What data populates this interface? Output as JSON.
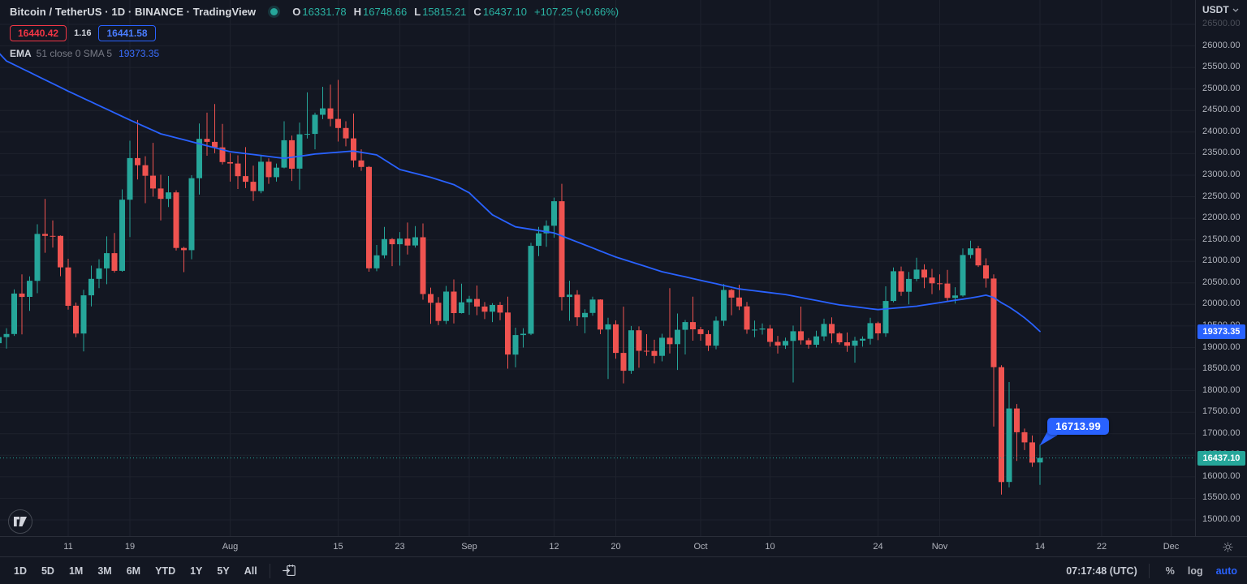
{
  "header": {
    "title": "Bitcoin / TetherUS · 1D · BINANCE · TradingView",
    "ohlc": {
      "o_label": "O",
      "o": "16331.78",
      "h_label": "H",
      "h": "16748.66",
      "l_label": "L",
      "l": "15815.21",
      "c_label": "C",
      "c": "16437.10",
      "change": "+107.25 (+0.66%)"
    },
    "bid": "16440.42",
    "spread": "1.16",
    "ask": "16441.58",
    "indicator": {
      "name": "EMA",
      "params": "51 close 0 SMA 5",
      "value": "19373.35"
    }
  },
  "price_axis": {
    "currency": "USDT",
    "indicator_tag": "19373.35",
    "last_tag": "16437.10"
  },
  "callout": {
    "text": "16713.99"
  },
  "toolbar": {
    "ranges": [
      "1D",
      "5D",
      "1M",
      "3M",
      "6M",
      "YTD",
      "1Y",
      "5Y",
      "All"
    ],
    "time": "07:17:48 (UTC)",
    "percent": "%",
    "log": "log",
    "auto": "auto"
  },
  "chart_data": {
    "type": "candlestick",
    "symbol": "Bitcoin / TetherUS",
    "exchange": "BINANCE",
    "interval": "1D",
    "price_axis": {
      "min": 15000,
      "max": 26500,
      "step": 500
    },
    "last_price": 16437.1,
    "indicator_last": 19373.35,
    "callout_price": 16713.99,
    "colors": {
      "up": "#26a69a",
      "down": "#ef5350",
      "ema": "#2962ff"
    },
    "x_ticks": [
      {
        "i": 8,
        "label": "11"
      },
      {
        "i": 16,
        "label": "19"
      },
      {
        "i": 29,
        "label": "Aug"
      },
      {
        "i": 43,
        "label": "15"
      },
      {
        "i": 51,
        "label": "23"
      },
      {
        "i": 60,
        "label": "Sep"
      },
      {
        "i": 71,
        "label": "12"
      },
      {
        "i": 79,
        "label": "20"
      },
      {
        "i": 90,
        "label": "Oct"
      },
      {
        "i": 99,
        "label": "10"
      },
      {
        "i": 113,
        "label": "24"
      },
      {
        "i": 121,
        "label": "Nov"
      },
      {
        "i": 134,
        "label": "14"
      },
      {
        "i": 142,
        "label": "22"
      },
      {
        "i": 151,
        "label": "Dec"
      }
    ],
    "ema": {
      "period": 51,
      "points": [
        [
          -1,
          25840
        ],
        [
          0,
          25650
        ],
        [
          8,
          24950
        ],
        [
          16,
          24280
        ],
        [
          20,
          23960
        ],
        [
          29,
          23545
        ],
        [
          36,
          23390
        ],
        [
          40,
          23490
        ],
        [
          45,
          23560
        ],
        [
          48,
          23470
        ],
        [
          51,
          23130
        ],
        [
          55,
          22950
        ],
        [
          58,
          22780
        ],
        [
          60,
          22590
        ],
        [
          63,
          22080
        ],
        [
          66,
          21800
        ],
        [
          71,
          21660
        ],
        [
          79,
          21100
        ],
        [
          85,
          20760
        ],
        [
          90,
          20560
        ],
        [
          95,
          20360
        ],
        [
          101,
          20230
        ],
        [
          108,
          19990
        ],
        [
          113,
          19880
        ],
        [
          118,
          19960
        ],
        [
          122,
          20070
        ],
        [
          125,
          20150
        ],
        [
          127,
          20215
        ],
        [
          128,
          20160
        ],
        [
          129,
          20040
        ],
        [
          130,
          19940
        ],
        [
          131,
          19820
        ],
        [
          132,
          19690
        ],
        [
          133,
          19540
        ],
        [
          134,
          19373.35
        ]
      ]
    },
    "candles": [
      [
        19100,
        19350,
        18990,
        19242
      ],
      [
        19242,
        19450,
        18975,
        19314
      ],
      [
        19314,
        20350,
        19270,
        20254
      ],
      [
        20254,
        20700,
        19305,
        20175
      ],
      [
        20175,
        20650,
        19850,
        20548
      ],
      [
        20548,
        21860,
        20260,
        21637
      ],
      [
        21637,
        22450,
        21200,
        21592
      ],
      [
        21592,
        21950,
        21320,
        21591
      ],
      [
        21591,
        21600,
        20655,
        20860
      ],
      [
        20860,
        21060,
        19880,
        19970
      ],
      [
        19970,
        20045,
        19240,
        19325
      ],
      [
        19325,
        20340,
        18910,
        20211
      ],
      [
        20211,
        20900,
        19955,
        20594
      ],
      [
        20594,
        21050,
        20380,
        20836
      ],
      [
        20836,
        21580,
        20470,
        21190
      ],
      [
        21190,
        21660,
        20740,
        20780
      ],
      [
        20780,
        22670,
        20760,
        22430
      ],
      [
        22430,
        23800,
        21565,
        23396
      ],
      [
        23396,
        24280,
        22900,
        23231
      ],
      [
        23231,
        23440,
        22350,
        22987
      ],
      [
        22987,
        23750,
        22500,
        22690
      ],
      [
        22690,
        23010,
        21950,
        22450
      ],
      [
        22450,
        22980,
        22260,
        22600
      ],
      [
        22600,
        22650,
        21250,
        21311
      ],
      [
        21311,
        21340,
        20750,
        21260
      ],
      [
        21260,
        23000,
        21050,
        22930
      ],
      [
        22930,
        24200,
        22550,
        23843
      ],
      [
        23843,
        24450,
        23450,
        23773
      ],
      [
        23773,
        24650,
        23510,
        23644
      ],
      [
        23644,
        24190,
        23250,
        23303
      ],
      [
        23303,
        23510,
        22850,
        23271
      ],
      [
        23271,
        23460,
        22680,
        22978
      ],
      [
        22978,
        23650,
        22700,
        22846
      ],
      [
        22846,
        23220,
        22400,
        22630
      ],
      [
        22630,
        23470,
        22580,
        23312
      ],
      [
        23312,
        23390,
        22800,
        22954
      ],
      [
        22954,
        23270,
        22850,
        23175
      ],
      [
        23175,
        24250,
        23160,
        23810
      ],
      [
        23810,
        23920,
        22865,
        23150
      ],
      [
        23150,
        24220,
        22665,
        23947
      ],
      [
        23947,
        24920,
        23850,
        23957
      ],
      [
        23957,
        24450,
        23600,
        24402
      ],
      [
        24402,
        25050,
        24300,
        24550
      ],
      [
        24550,
        25100,
        24135,
        24305
      ],
      [
        24305,
        25211,
        23780,
        24095
      ],
      [
        24095,
        24250,
        23670,
        23854
      ],
      [
        23854,
        24430,
        23180,
        23342
      ],
      [
        23342,
        23600,
        23100,
        23191
      ],
      [
        23191,
        23210,
        20760,
        20838
      ],
      [
        20838,
        21380,
        20770,
        21139
      ],
      [
        21139,
        21800,
        21070,
        21516
      ],
      [
        21516,
        21540,
        20890,
        21398
      ],
      [
        21398,
        21680,
        20900,
        21528
      ],
      [
        21528,
        21900,
        21160,
        21368
      ],
      [
        21368,
        21820,
        21320,
        21559
      ],
      [
        21559,
        21880,
        20110,
        20241
      ],
      [
        20241,
        20390,
        19550,
        20038
      ],
      [
        20038,
        20170,
        19520,
        19616
      ],
      [
        19616,
        20430,
        19545,
        20298
      ],
      [
        20298,
        20580,
        19560,
        19799
      ],
      [
        19799,
        20480,
        19790,
        20050
      ],
      [
        20050,
        20200,
        19760,
        20127
      ],
      [
        20127,
        20440,
        19750,
        19952
      ],
      [
        19952,
        20055,
        19660,
        19832
      ],
      [
        19832,
        20030,
        19590,
        19988
      ],
      [
        19988,
        20060,
        19635,
        19812
      ],
      [
        19812,
        20180,
        18510,
        18837
      ],
      [
        18837,
        19460,
        18540,
        19290
      ],
      [
        19290,
        19450,
        19000,
        19320
      ],
      [
        19320,
        21430,
        19290,
        21360
      ],
      [
        21360,
        21800,
        21120,
        21650
      ],
      [
        21650,
        21950,
        21340,
        21827
      ],
      [
        21827,
        22480,
        21550,
        22395
      ],
      [
        22395,
        22800,
        19861,
        20173
      ],
      [
        20173,
        20550,
        19620,
        20226
      ],
      [
        20226,
        20330,
        19500,
        19701
      ],
      [
        19701,
        19890,
        19330,
        19803
      ],
      [
        19803,
        20180,
        19740,
        20113
      ],
      [
        20113,
        20120,
        19310,
        19416
      ],
      [
        19416,
        19690,
        18270,
        19537
      ],
      [
        19537,
        19630,
        18740,
        18875
      ],
      [
        18875,
        19950,
        18170,
        18461
      ],
      [
        18461,
        19500,
        18390,
        19401
      ],
      [
        19401,
        19490,
        18530,
        18925
      ],
      [
        18925,
        19310,
        18810,
        18921
      ],
      [
        18921,
        19180,
        18630,
        18807
      ],
      [
        18807,
        19320,
        18680,
        19227
      ],
      [
        19227,
        20380,
        18865,
        19079
      ],
      [
        19079,
        19790,
        18480,
        19412
      ],
      [
        19412,
        19640,
        18840,
        19590
      ],
      [
        19590,
        20180,
        19160,
        19423
      ],
      [
        19423,
        19480,
        19160,
        19312
      ],
      [
        19312,
        19400,
        18920,
        19044
      ],
      [
        19044,
        19720,
        18960,
        19623
      ],
      [
        19623,
        20475,
        19500,
        20336
      ],
      [
        20336,
        20360,
        19750,
        20160
      ],
      [
        20160,
        20456,
        19870,
        19955
      ],
      [
        19955,
        20060,
        19320,
        19414
      ],
      [
        19414,
        19625,
        19240,
        19416
      ],
      [
        19416,
        19560,
        19300,
        19441
      ],
      [
        19441,
        19525,
        19020,
        19131
      ],
      [
        19131,
        19270,
        18860,
        19047
      ],
      [
        19047,
        19230,
        18970,
        19153
      ],
      [
        19153,
        19510,
        18190,
        19377
      ],
      [
        19377,
        19950,
        19070,
        19169
      ],
      [
        19169,
        19220,
        18975,
        19067
      ],
      [
        19067,
        19390,
        19000,
        19260
      ],
      [
        19260,
        19670,
        19155,
        19548
      ],
      [
        19548,
        19700,
        19100,
        19327
      ],
      [
        19327,
        19360,
        19070,
        19122
      ],
      [
        19122,
        19350,
        18900,
        19042
      ],
      [
        19042,
        19250,
        18650,
        19161
      ],
      [
        19161,
        19260,
        19020,
        19203
      ],
      [
        19203,
        19690,
        19070,
        19567
      ],
      [
        19567,
        19600,
        19170,
        19330
      ],
      [
        19330,
        20420,
        19250,
        20080
      ],
      [
        20080,
        20860,
        20050,
        20771
      ],
      [
        20771,
        20880,
        20200,
        20295
      ],
      [
        20295,
        20755,
        20000,
        20592
      ],
      [
        20592,
        21085,
        20540,
        20808
      ],
      [
        20808,
        20930,
        20380,
        20624
      ],
      [
        20624,
        20825,
        20240,
        20490
      ],
      [
        20490,
        20700,
        20330,
        20485
      ],
      [
        20485,
        20800,
        20060,
        20151
      ],
      [
        20151,
        20400,
        20020,
        20208
      ],
      [
        20208,
        21300,
        20180,
        21148
      ],
      [
        21148,
        21480,
        21070,
        21301
      ],
      [
        21301,
        21360,
        20870,
        20906
      ],
      [
        20906,
        21070,
        20390,
        20602
      ],
      [
        20602,
        20700,
        17166,
        18545
      ],
      [
        18545,
        18590,
        15588,
        15880
      ],
      [
        15880,
        18199,
        15754,
        17586
      ],
      [
        17586,
        17690,
        16370,
        17034
      ],
      [
        17034,
        17120,
        16620,
        16799
      ],
      [
        16799,
        16960,
        16230,
        16329
      ],
      [
        16331.78,
        16748.66,
        15815.21,
        16437.1
      ]
    ]
  }
}
